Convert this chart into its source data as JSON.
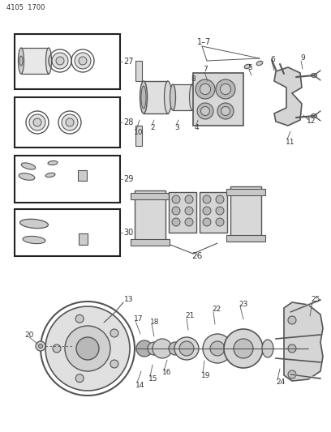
{
  "header_text": "4105  1700",
  "background_color": "#ffffff",
  "line_color": "#555555",
  "box_color": "#222222",
  "text_color": "#333333",
  "fig_width": 4.08,
  "fig_height": 5.33,
  "dpi": 100
}
